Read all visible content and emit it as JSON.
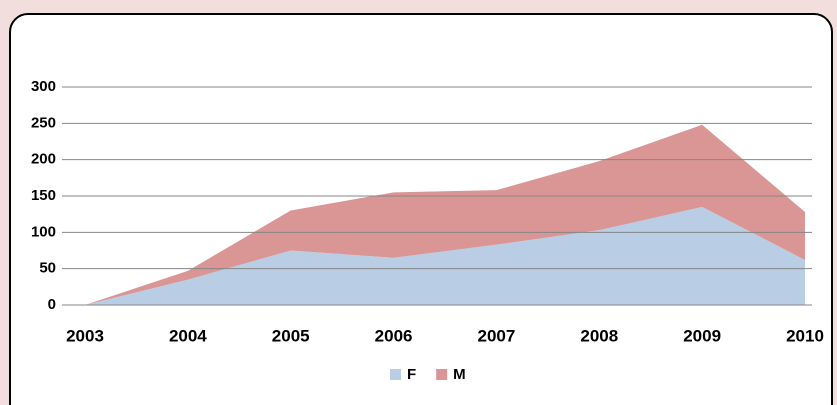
{
  "chart_data": {
    "type": "stacked_area",
    "categories": [
      "2003",
      "2004",
      "2005",
      "2006",
      "2007",
      "2008",
      "2009",
      "2010"
    ],
    "series": [
      {
        "name": "F",
        "color": "#b9cde5",
        "values": [
          0,
          35,
          75,
          65,
          83,
          103,
          135,
          62
        ]
      },
      {
        "name": "M",
        "color": "#d99694",
        "values": [
          0,
          12,
          55,
          90,
          75,
          95,
          113,
          66
        ]
      }
    ],
    "ylim": [
      0,
      300
    ],
    "yticks": [
      0,
      50,
      100,
      150,
      200,
      250,
      300
    ],
    "grid": true,
    "legend": "bottom"
  }
}
